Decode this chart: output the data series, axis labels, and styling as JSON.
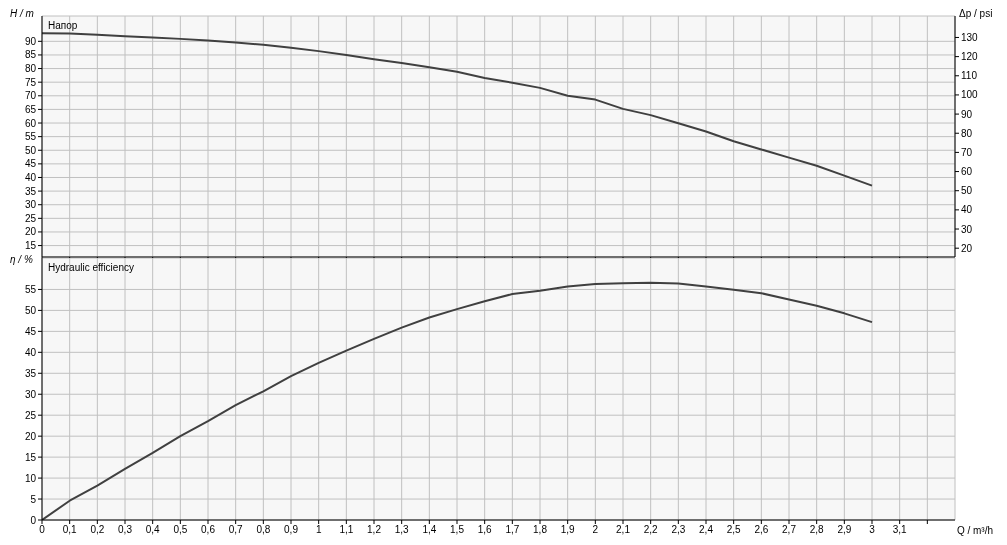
{
  "chart_data": [
    {
      "type": "line",
      "title": "Напор",
      "ylabel": "H / m",
      "y2label": "Δp / psi",
      "x": [
        0,
        0.1,
        0.2,
        0.3,
        0.4,
        0.5,
        0.6,
        0.7,
        0.8,
        0.9,
        1.0,
        1.1,
        1.2,
        1.3,
        1.4,
        1.5,
        1.6,
        1.7,
        1.8,
        1.9,
        2.0,
        2.1,
        2.2,
        2.3,
        2.4,
        2.5,
        2.6,
        2.7,
        2.8,
        2.9,
        3.0
      ],
      "series": [
        {
          "color": "#404040",
          "values": [
            93.0,
            92.9,
            92.4,
            91.9,
            91.4,
            90.9,
            90.3,
            89.6,
            88.7,
            87.6,
            86.4,
            85.0,
            83.4,
            82.0,
            80.5,
            78.8,
            76.5,
            74.8,
            72.9,
            70.0,
            68.6,
            65.2,
            62.9,
            59.9,
            56.9,
            53.3,
            50.3,
            47.3,
            44.3,
            40.7,
            37.0
          ]
        }
      ],
      "xlim": [
        0,
        3.3
      ],
      "xticks": [
        0,
        0.1,
        0.2,
        0.3,
        0.4,
        0.5,
        0.6,
        0.7,
        0.8,
        0.9,
        1,
        1.1,
        1.2,
        1.3,
        1.4,
        1.5,
        1.6,
        1.7,
        1.8,
        1.9,
        2,
        2.1,
        2.2,
        2.3,
        2.4,
        2.5,
        2.6,
        2.7,
        2.8,
        2.9,
        3,
        3.1,
        3.2
      ],
      "ylim": [
        10.8,
        99.3
      ],
      "yticks": [
        15,
        20,
        25,
        30,
        35,
        40,
        45,
        50,
        55,
        60,
        65,
        70,
        75,
        80,
        85,
        90
      ],
      "y2lim": [
        15.4,
        141.2
      ],
      "y2ticks": [
        20,
        30,
        40,
        50,
        60,
        70,
        80,
        90,
        100,
        110,
        120,
        130
      ],
      "tick_labels": "y",
      "grid": true
    },
    {
      "type": "line",
      "title": "Hydraulic efficiency",
      "ylabel": "η / %",
      "xlabel": "Q / m³/h",
      "x": [
        0,
        0.1,
        0.2,
        0.3,
        0.4,
        0.5,
        0.6,
        0.7,
        0.8,
        0.9,
        1.0,
        1.1,
        1.2,
        1.3,
        1.4,
        1.5,
        1.6,
        1.7,
        1.8,
        1.9,
        2.0,
        2.1,
        2.2,
        2.3,
        2.4,
        2.5,
        2.6,
        2.7,
        2.8,
        2.9,
        3.0
      ],
      "series": [
        {
          "color": "#404040",
          "values": [
            0,
            4.6,
            8.2,
            12.2,
            16.0,
            20.0,
            23.6,
            27.4,
            30.7,
            34.3,
            37.5,
            40.4,
            43.2,
            45.9,
            48.3,
            50.3,
            52.2,
            53.9,
            54.7,
            55.7,
            56.3,
            56.5,
            56.6,
            56.4,
            55.7,
            54.9,
            54.1,
            52.6,
            51.1,
            49.3,
            47.2
          ]
        }
      ],
      "xlim": [
        0,
        3.3
      ],
      "xticks": [
        0,
        {
          "value": 0.1,
          "label": "0,1"
        },
        {
          "value": 0.2,
          "label": "0,2"
        },
        {
          "value": 0.3,
          "label": "0,3"
        },
        {
          "value": 0.4,
          "label": "0,4"
        },
        {
          "value": 0.5,
          "label": "0,5"
        },
        {
          "value": 0.6,
          "label": "0,6"
        },
        {
          "value": 0.7,
          "label": "0,7"
        },
        {
          "value": 0.8,
          "label": "0,8"
        },
        {
          "value": 0.9,
          "label": "0,9"
        },
        1,
        {
          "value": 1.1,
          "label": "1,1"
        },
        {
          "value": 1.2,
          "label": "1,2"
        },
        {
          "value": 1.3,
          "label": "1,3"
        },
        {
          "value": 1.4,
          "label": "1,4"
        },
        {
          "value": 1.5,
          "label": "1,5"
        },
        {
          "value": 1.6,
          "label": "1,6"
        },
        {
          "value": 1.7,
          "label": "1,7"
        },
        {
          "value": 1.8,
          "label": "1,8"
        },
        {
          "value": 1.9,
          "label": "1,9"
        },
        2,
        {
          "value": 2.1,
          "label": "2,1"
        },
        {
          "value": 2.2,
          "label": "2,2"
        },
        {
          "value": 2.3,
          "label": "2,3"
        },
        {
          "value": 2.4,
          "label": "2,4"
        },
        {
          "value": 2.5,
          "label": "2,5"
        },
        {
          "value": 2.6,
          "label": "2,6"
        },
        {
          "value": 2.7,
          "label": "2,7"
        },
        {
          "value": 2.8,
          "label": "2,8"
        },
        {
          "value": 2.9,
          "label": "2,9"
        },
        3,
        {
          "value": 3.1,
          "label": "3,1"
        },
        {
          "value": 3.2,
          "label": null
        }
      ],
      "ylim": [
        0,
        62.5
      ],
      "yticks": [
        0,
        5,
        10,
        15,
        20,
        25,
        30,
        35,
        40,
        45,
        50,
        55
      ],
      "grid": true
    }
  ]
}
